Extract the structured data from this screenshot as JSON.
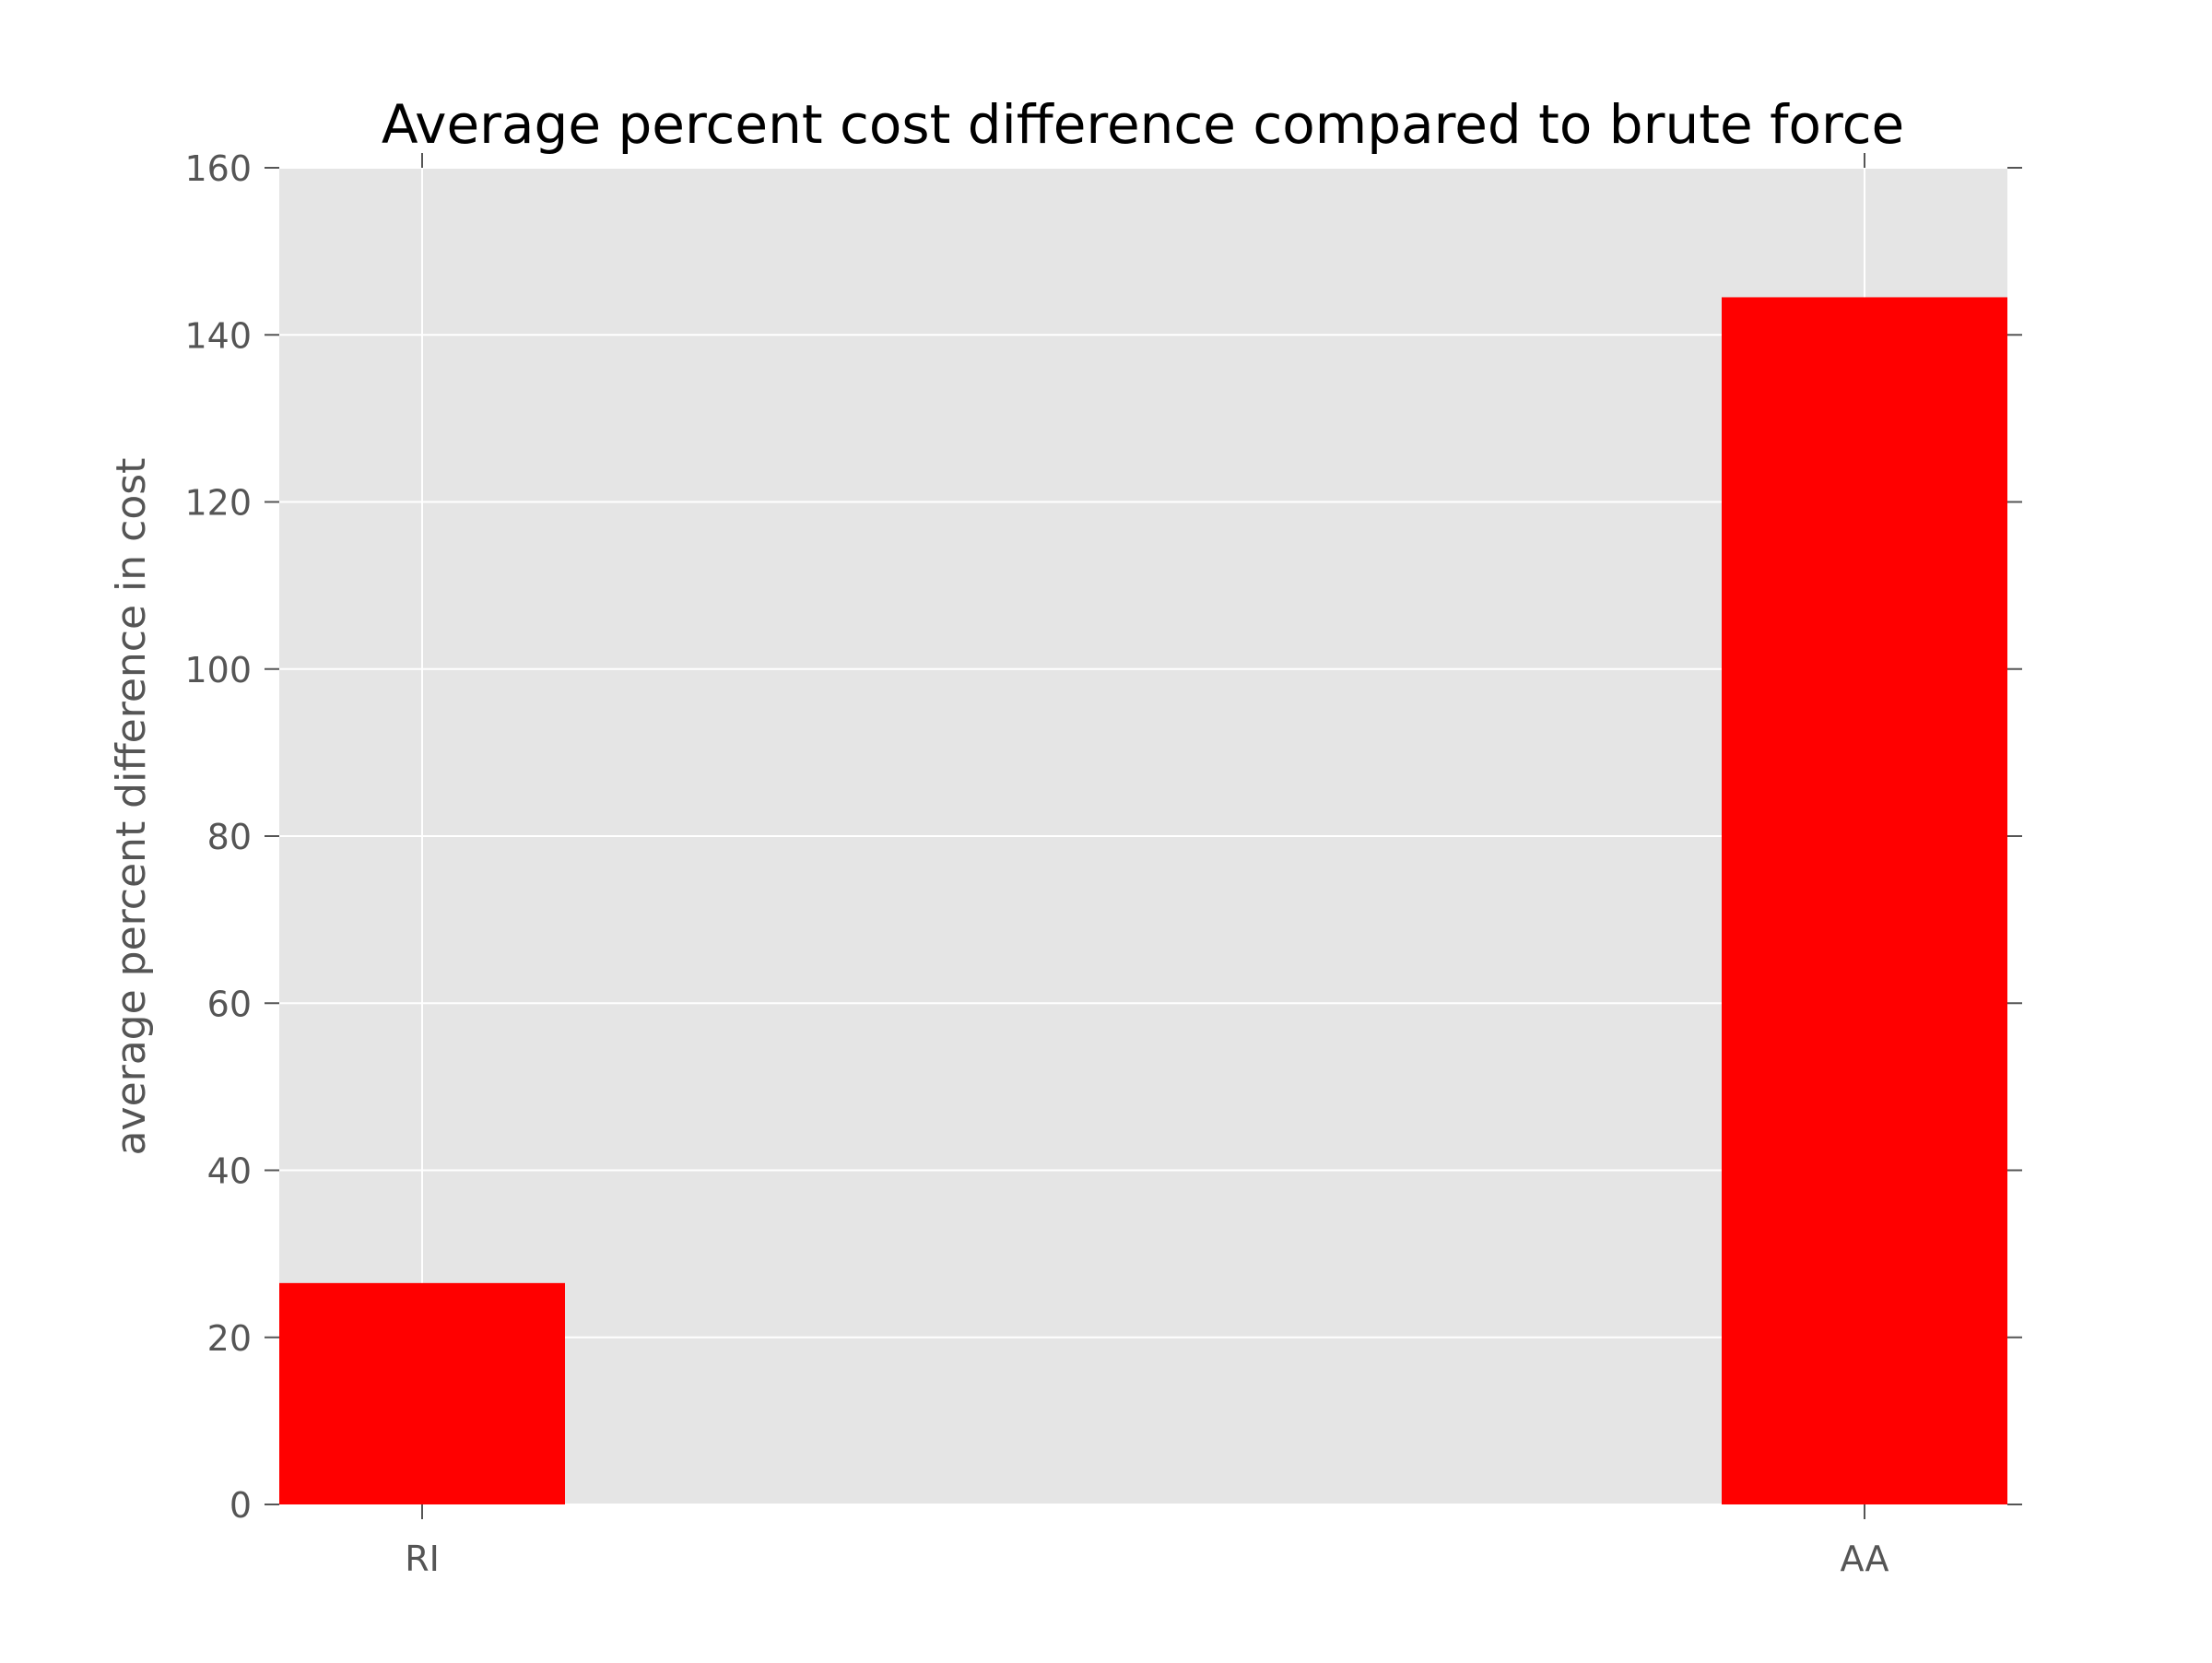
{
  "chart_data": {
    "type": "bar",
    "title": "Average percent cost difference compared to brute force",
    "xlabel": "",
    "ylabel": "average percent difference in cost",
    "categories": [
      "RI",
      "AA"
    ],
    "values": [
      26.5,
      144.5
    ],
    "ylim": [
      0,
      160
    ],
    "yticks": [
      0,
      20,
      40,
      60,
      80,
      100,
      120,
      140,
      160
    ],
    "grid": true,
    "legend": "none",
    "colors": {
      "bar": "#ff0000",
      "plot_background": "#e5e5e5",
      "grid": "#ffffff",
      "tick_label": "#555555",
      "title": "#000000"
    }
  }
}
